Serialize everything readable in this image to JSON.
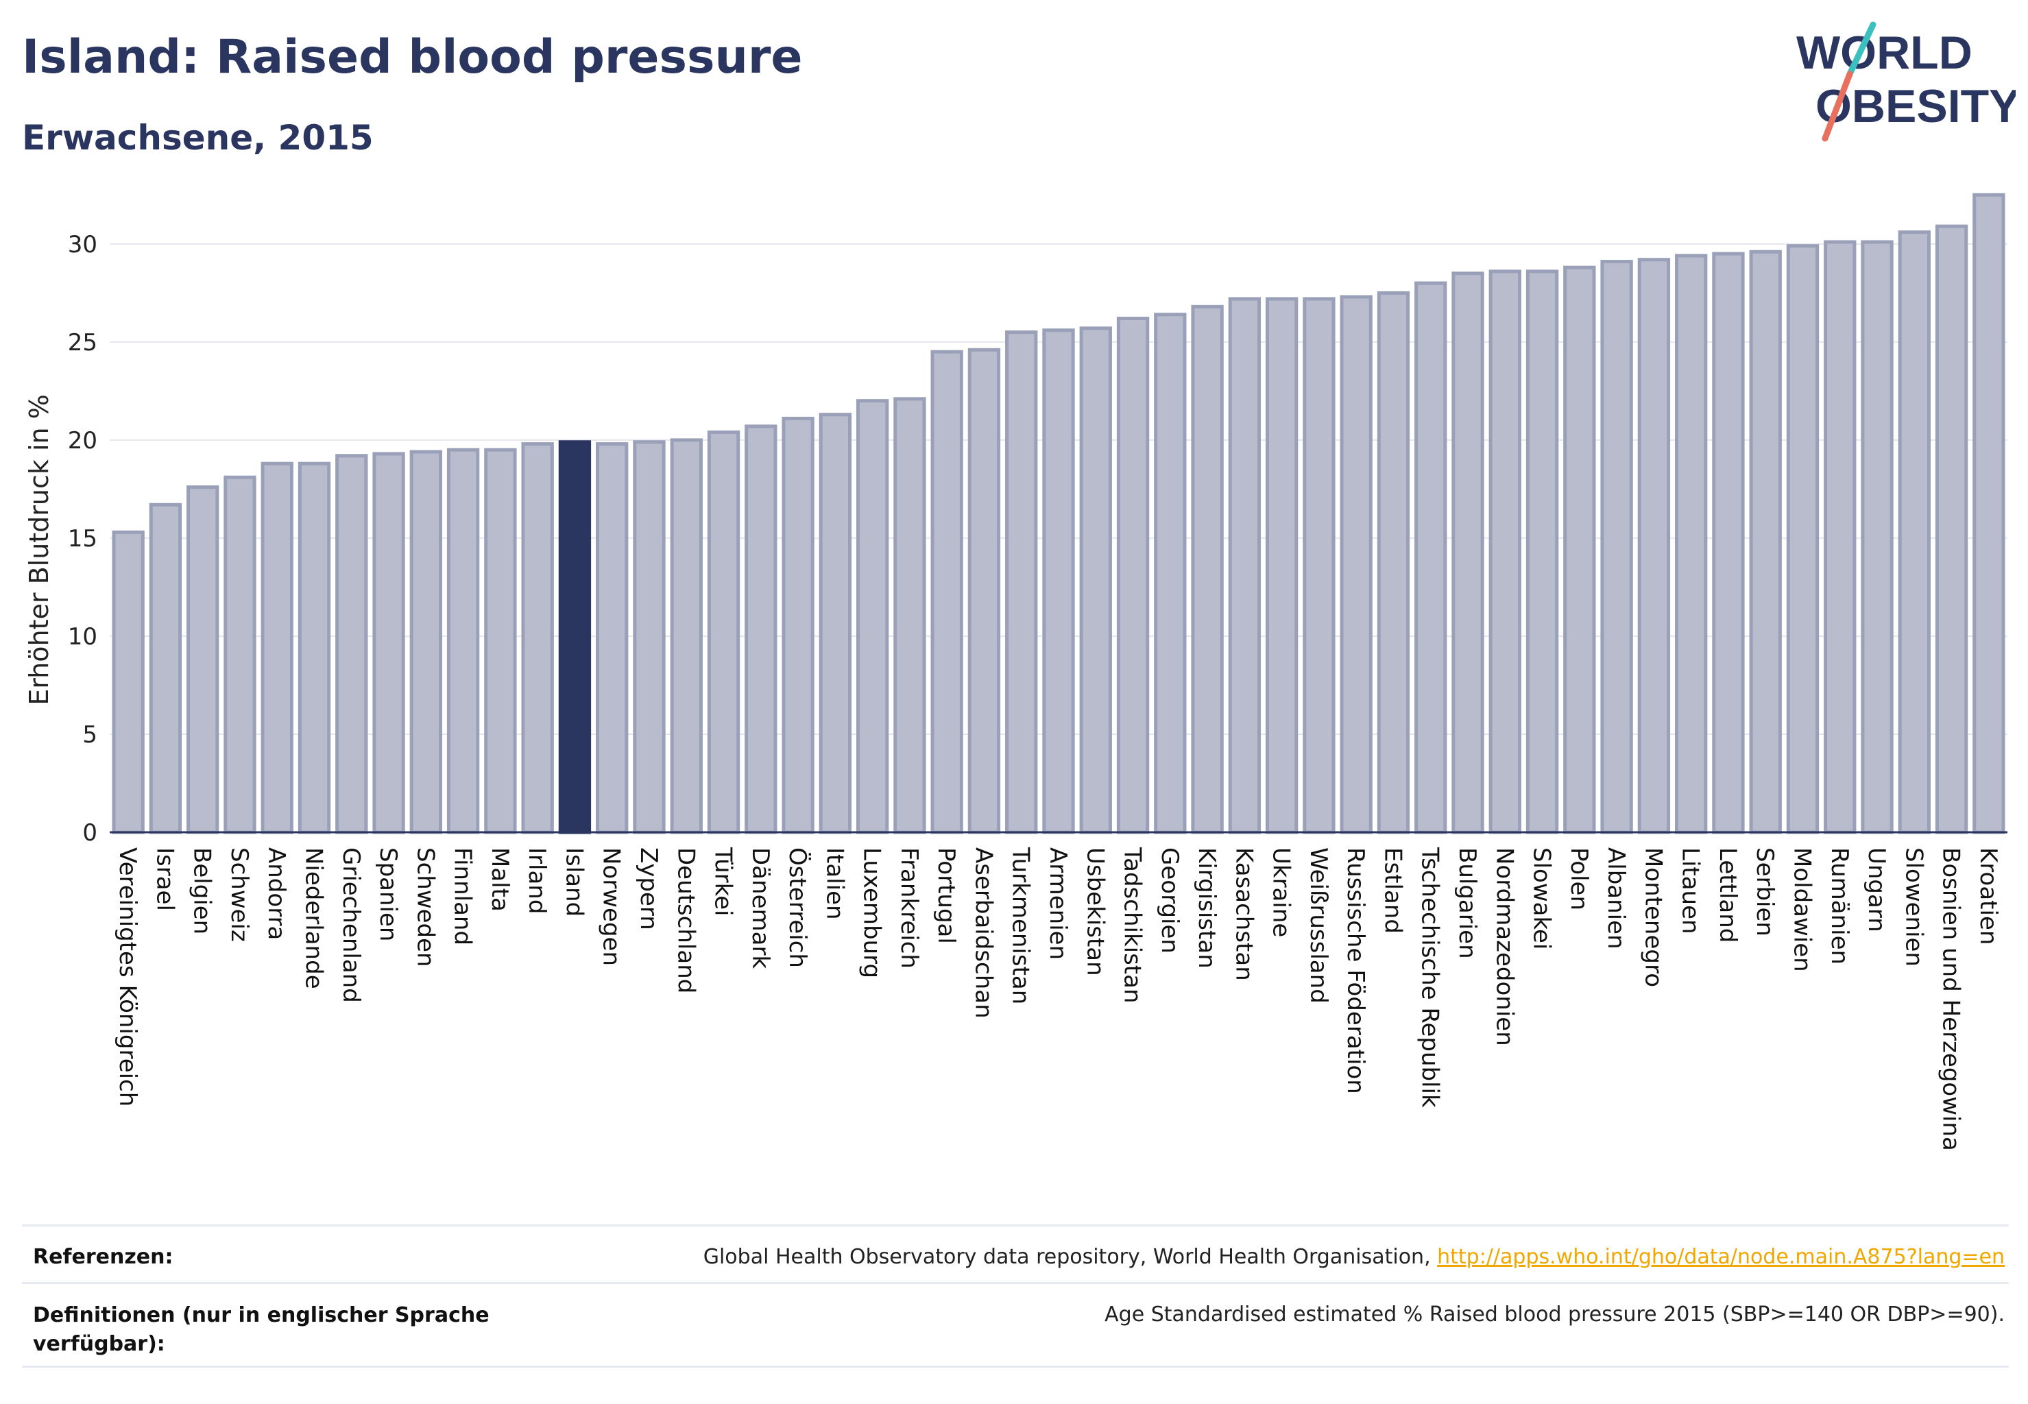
{
  "header": {
    "title": "Island: Raised blood pressure",
    "subtitle": "Erwachsene, 2015"
  },
  "logo": {
    "line1": "WORLD",
    "line2": "OBESITY",
    "colors": {
      "text": "#2a3560",
      "slash_teal": "#3bbfbf",
      "slash_coral": "#e8705e"
    }
  },
  "colors": {
    "bar": "#b8bccd",
    "bar_border": "#9aa0b8",
    "highlight": "#2a3560",
    "grid": "#e4e6ee",
    "axis": "#2a3560"
  },
  "chart_data": {
    "type": "bar",
    "title": "Island: Raised blood pressure",
    "subtitle": "Erwachsene, 2015",
    "ylabel": "Erhöhter Blutdruck in %",
    "xlabel": "",
    "ylim": [
      0,
      33
    ],
    "yticks": [
      0,
      5,
      10,
      15,
      20,
      25,
      30
    ],
    "grid": true,
    "highlight": "Island",
    "categories": [
      "Vereinigtes Königreich",
      "Israel",
      "Belgien",
      "Schweiz",
      "Andorra",
      "Niederlande",
      "Griechenland",
      "Spanien",
      "Schweden",
      "Finnland",
      "Malta",
      "Irland",
      "Island",
      "Norwegen",
      "Zypern",
      "Deutschland",
      "Türkei",
      "Dänemark",
      "Österreich",
      "Italien",
      "Luxemburg",
      "Frankreich",
      "Portugal",
      "Aserbaidschan",
      "Turkmenistan",
      "Armenien",
      "Usbekistan",
      "Tadschikistan",
      "Georgien",
      "Kirgisistan",
      "Kasachstan",
      "Ukraine",
      "Weißrussland",
      "Russische Föderation",
      "Estland",
      "Tschechische Republik",
      "Bulgarien",
      "Nordmazedonien",
      "Slowakei",
      "Polen",
      "Albanien",
      "Montenegro",
      "Litauen",
      "Lettland",
      "Serbien",
      "Moldawien",
      "Rumänien",
      "Ungarn",
      "Slowenien",
      "Bosnien und Herzegowina",
      "Kroatien"
    ],
    "values": [
      15.3,
      16.7,
      17.6,
      18.1,
      18.8,
      18.8,
      19.2,
      19.3,
      19.4,
      19.5,
      19.5,
      19.8,
      19.9,
      19.8,
      19.9,
      20.0,
      20.4,
      20.7,
      21.1,
      21.3,
      22.0,
      22.1,
      24.5,
      24.6,
      25.5,
      25.6,
      25.7,
      26.2,
      26.4,
      26.8,
      27.2,
      27.2,
      27.2,
      27.3,
      27.5,
      28.0,
      28.5,
      28.6,
      28.6,
      28.8,
      29.1,
      29.2,
      29.4,
      29.5,
      29.6,
      29.9,
      30.1,
      30.1,
      30.6,
      30.9,
      32.5
    ]
  },
  "references": {
    "label": "Referenzen:",
    "text": "Global Health Observatory data repository, World Health Organisation, ",
    "link": "http://apps.who.int/gho/data/node.main.A875?lang=en"
  },
  "definitions": {
    "label_line1": "Definitionen (nur in englischer Sprache",
    "label_line2": "verfügbar):",
    "text": "Age Standardised estimated % Raised blood pressure 2015 (SBP>=140 OR DBP>=90)."
  }
}
